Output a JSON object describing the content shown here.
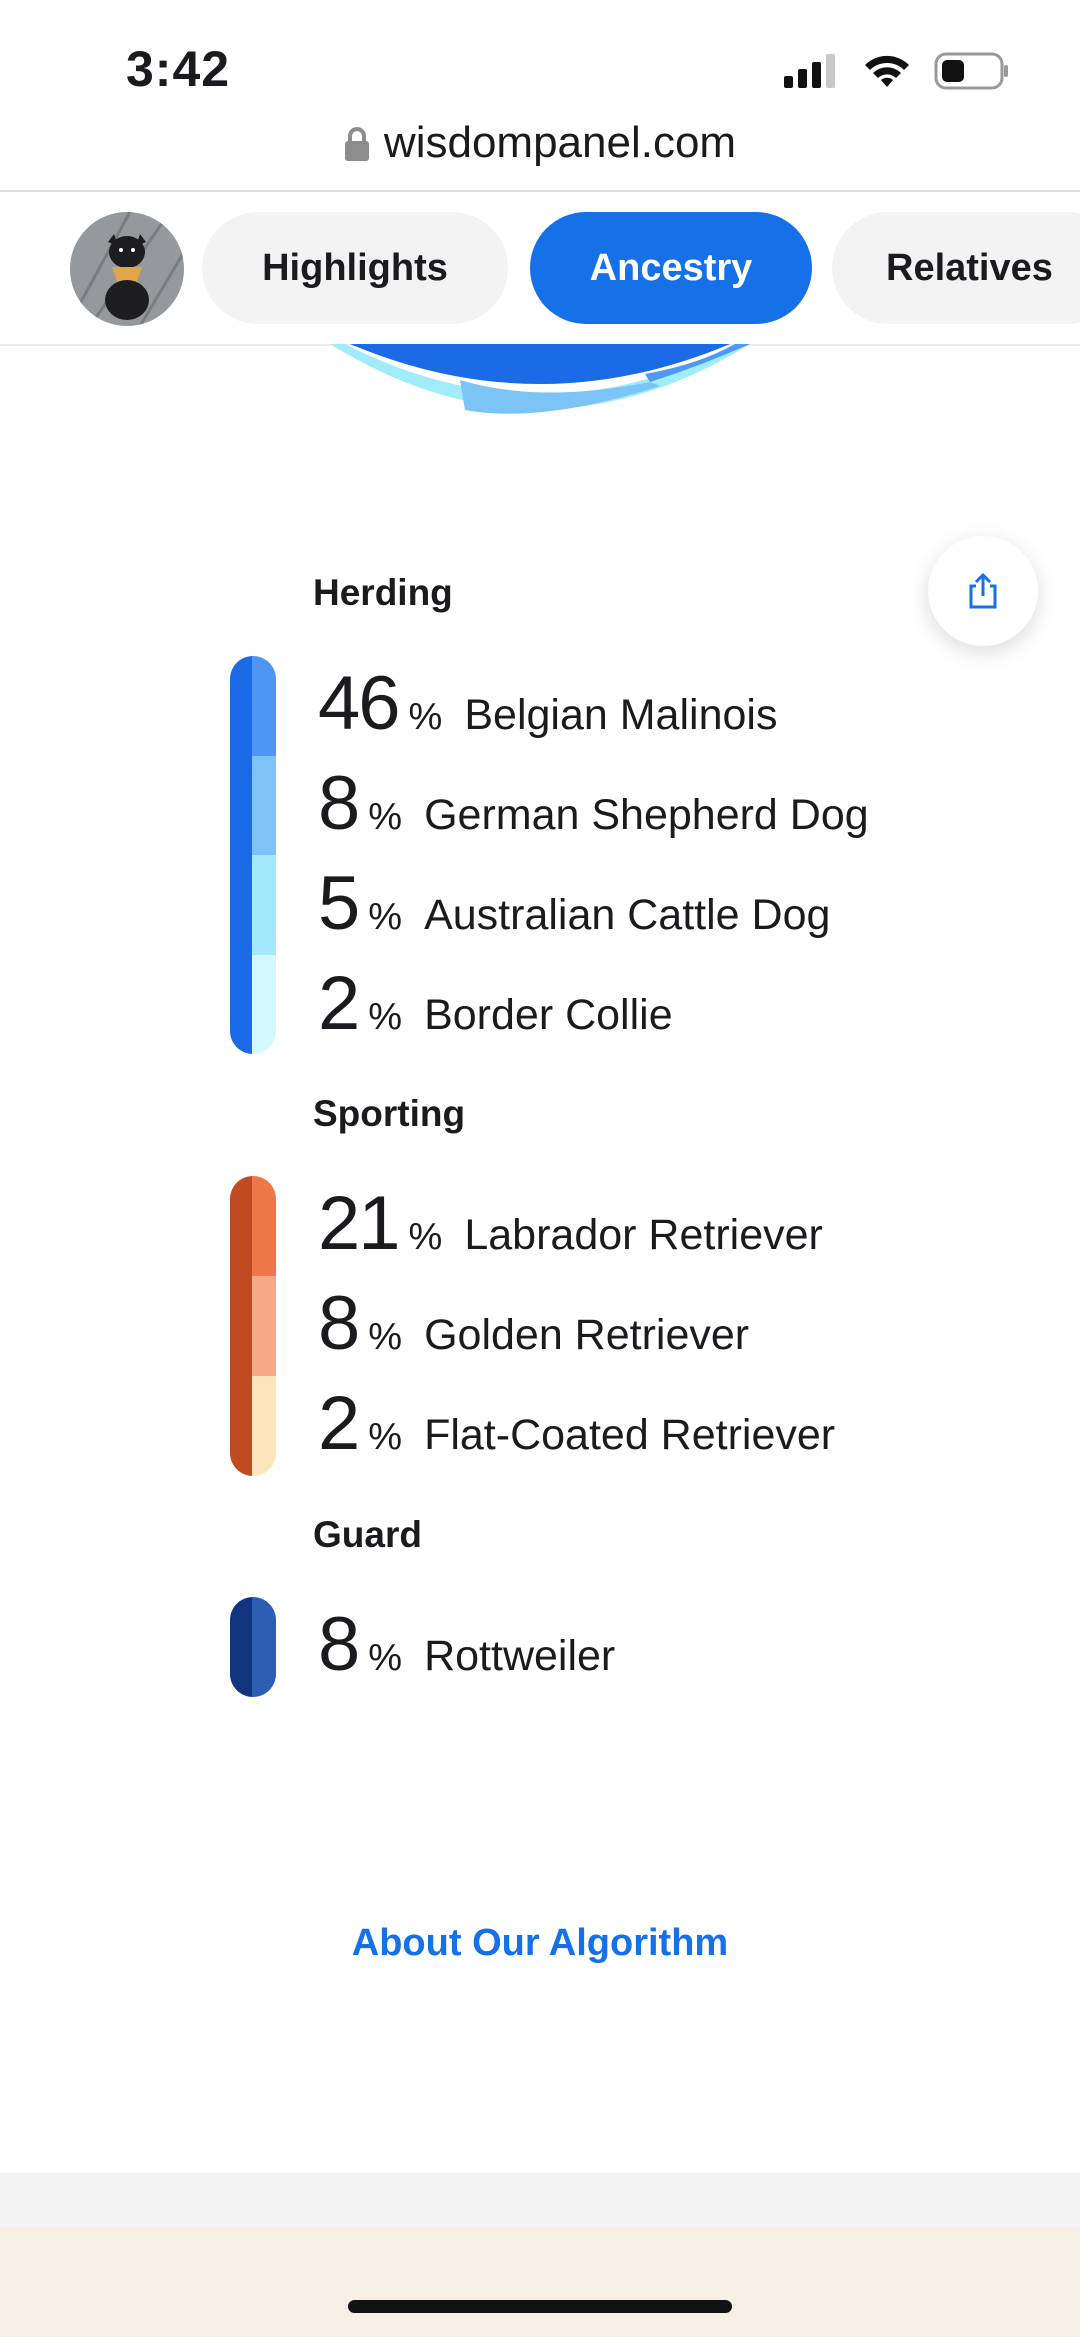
{
  "status": {
    "time": "3:42",
    "url": "wisdompanel.com"
  },
  "nav": {
    "tabs": [
      {
        "label": "Highlights",
        "active": false
      },
      {
        "label": "Ancestry",
        "active": true
      },
      {
        "label": "Relatives",
        "active": false
      }
    ]
  },
  "groups": [
    {
      "title": "Herding",
      "bar_colors": [
        "#1b6ae6",
        "#4d96f4",
        "#7fc2f7",
        "#a4e9fb",
        "#d3f8ff"
      ],
      "breeds": [
        {
          "pct": "46",
          "sign": "%",
          "name": "Belgian Malinois"
        },
        {
          "pct": "8",
          "sign": "%",
          "name": "German Shepherd Dog"
        },
        {
          "pct": "5",
          "sign": "%",
          "name": "Australian Cattle Dog"
        },
        {
          "pct": "2",
          "sign": "%",
          "name": "Border Collie"
        }
      ]
    },
    {
      "title": "Sporting",
      "bar_colors": [
        "#c04a22",
        "#ef7646",
        "#f7a987",
        "#fde4bd"
      ],
      "breeds": [
        {
          "pct": "21",
          "sign": "%",
          "name": "Labrador Retriever"
        },
        {
          "pct": "8",
          "sign": "%",
          "name": "Golden Retriever"
        },
        {
          "pct": "2",
          "sign": "%",
          "name": "Flat-Coated Retriever"
        }
      ]
    },
    {
      "title": "Guard",
      "bar_colors": [
        "#10357e",
        "#2e5eb3"
      ],
      "breeds": [
        {
          "pct": "8",
          "sign": "%",
          "name": "Rottweiler"
        }
      ]
    }
  ],
  "footer": {
    "algorithm_link": "About Our Algorithm"
  },
  "colors": {
    "accent": "#1670e8"
  }
}
